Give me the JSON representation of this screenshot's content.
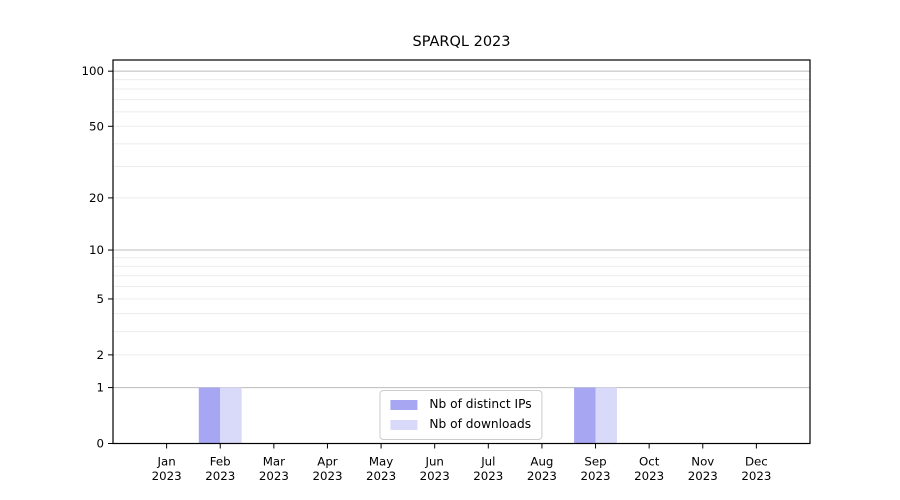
{
  "chart_data": {
    "type": "bar",
    "title": "SPARQL 2023",
    "xlabel": "",
    "ylabel": "",
    "x_year": "2023",
    "categories": [
      "Jan",
      "Feb",
      "Mar",
      "Apr",
      "May",
      "Jun",
      "Jul",
      "Aug",
      "Sep",
      "Oct",
      "Nov",
      "Dec"
    ],
    "series": [
      {
        "name": "Nb of distinct IPs",
        "color": "#a6a6f2",
        "values": [
          0,
          1,
          0,
          0,
          0,
          0,
          0,
          0,
          1,
          0,
          0,
          0
        ]
      },
      {
        "name": "Nb of downloads",
        "color": "#d9d9fa",
        "values": [
          0,
          1,
          0,
          0,
          0,
          0,
          0,
          0,
          1,
          0,
          0,
          0
        ]
      }
    ],
    "yscale": "log1p",
    "yticks": [
      0,
      1,
      2,
      5,
      10,
      20,
      50,
      100
    ],
    "ylim": [
      0,
      115
    ],
    "grid": {
      "on": true,
      "major": [
        1,
        10,
        100
      ],
      "minor": [
        2,
        3,
        4,
        5,
        6,
        7,
        8,
        9,
        20,
        30,
        40,
        50,
        60,
        70,
        80,
        90
      ]
    },
    "legend": {
      "position": "lower center"
    },
    "bar_width_fraction": 0.4
  }
}
